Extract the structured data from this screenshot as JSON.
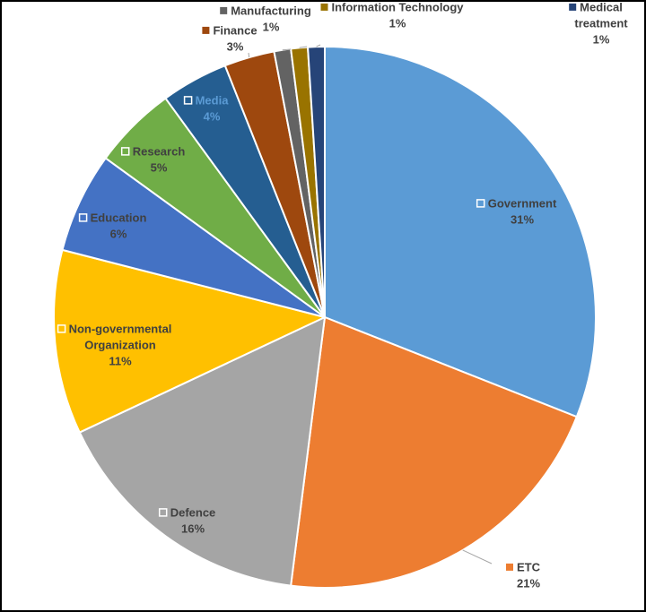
{
  "chart_data": {
    "type": "pie",
    "title": "",
    "start_angle_deg": 0,
    "direction": "clockwise",
    "legend": "none",
    "slices": [
      {
        "label": [
          "Government"
        ],
        "percent_label": "31%",
        "value": 31,
        "color": "#5b9bd5",
        "light_text": false
      },
      {
        "label": [
          "ETC"
        ],
        "percent_label": "21%",
        "value": 21,
        "color": "#ed7d31",
        "light_text": false
      },
      {
        "label": [
          "Defence"
        ],
        "percent_label": "16%",
        "value": 16,
        "color": "#a5a5a5",
        "light_text": false
      },
      {
        "label": [
          "Non-governmental",
          "Organization"
        ],
        "percent_label": "11%",
        "value": 11,
        "color": "#ffc000",
        "light_text": false
      },
      {
        "label": [
          "Education"
        ],
        "percent_label": "6%",
        "value": 6,
        "color": "#4472c4",
        "light_text": false
      },
      {
        "label": [
          "Research"
        ],
        "percent_label": "5%",
        "value": 5,
        "color": "#70ad47",
        "light_text": false
      },
      {
        "label": [
          "Media"
        ],
        "percent_label": "4%",
        "value": 4,
        "color": "#255e91",
        "light_text": true
      },
      {
        "label": [
          "Finance"
        ],
        "percent_label": "3%",
        "value": 3,
        "color": "#9e480e",
        "light_text": false
      },
      {
        "label": [
          "Manufacturing"
        ],
        "percent_label": "1%",
        "value": 1,
        "color": "#636363",
        "light_text": false
      },
      {
        "label": [
          "Information Technology"
        ],
        "percent_label": "1%",
        "value": 1,
        "color": "#997300",
        "light_text": false
      },
      {
        "label": [
          "Medical",
          "treatment"
        ],
        "percent_label": "1%",
        "value": 1,
        "color": "#264478",
        "light_text": false
      }
    ]
  }
}
